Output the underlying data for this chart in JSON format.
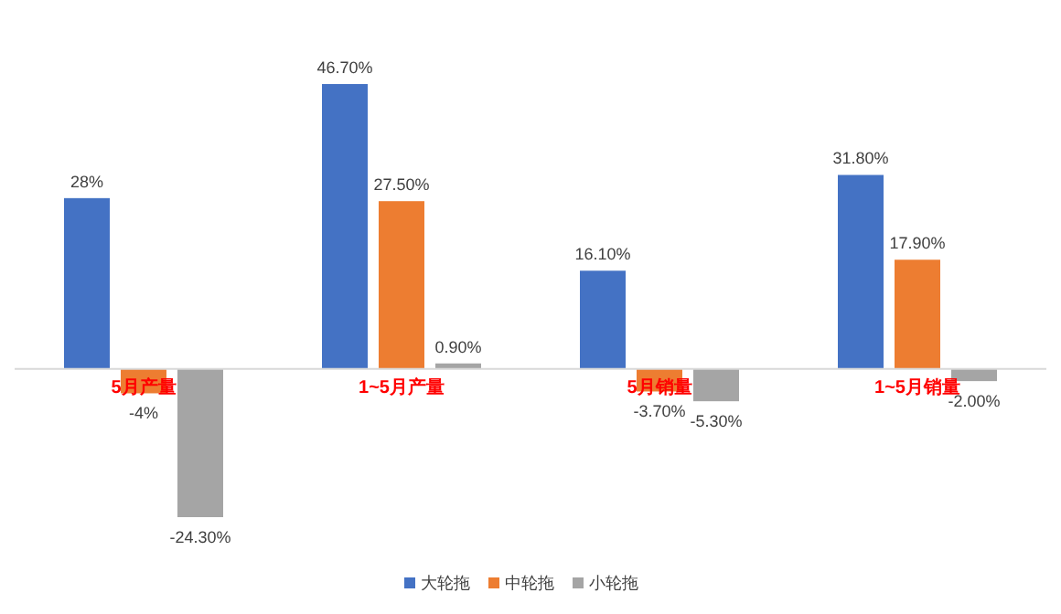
{
  "chart_data": {
    "type": "bar",
    "categories": [
      "5月产量",
      "1~5月产量",
      "5月销量",
      "1~5月销量"
    ],
    "series": [
      {
        "name": "大轮拖",
        "color": "#4472c4",
        "values": [
          28,
          46.7,
          16.1,
          31.8
        ],
        "value_labels": [
          "28%",
          "46.70%",
          "16.10%",
          "31.80%"
        ]
      },
      {
        "name": "中轮拖",
        "color": "#ed7d31",
        "values": [
          -4,
          27.5,
          -3.7,
          17.9
        ],
        "value_labels": [
          "-4%",
          "27.50%",
          "-3.70%",
          "17.90%"
        ]
      },
      {
        "name": "小轮拖",
        "color": "#a5a5a5",
        "values": [
          -24.3,
          0.9,
          -5.3,
          -2
        ],
        "value_labels": [
          "-24.30%",
          "0.90%",
          "-5.30%",
          "-2.00%"
        ]
      }
    ],
    "legend": "bottom"
  }
}
